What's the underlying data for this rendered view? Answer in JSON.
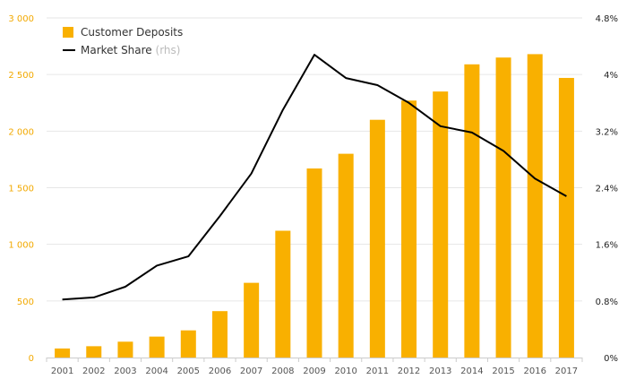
{
  "colors": {
    "bar": "#F9B000",
    "line": "#000000",
    "left_axis_text": "#F2A900",
    "right_axis_text": "#222222",
    "grid": "#E6E6E6"
  },
  "chart_data": {
    "type": "bar",
    "categories": [
      "2001",
      "2002",
      "2003",
      "2004",
      "2005",
      "2006",
      "2007",
      "2008",
      "2009",
      "2010",
      "2011",
      "2012",
      "2013",
      "2014",
      "2015",
      "2016",
      "2017"
    ],
    "series": [
      {
        "name": "Customer Deposits",
        "type": "bar",
        "axis": "left",
        "values": [
          80,
          100,
          140,
          185,
          240,
          410,
          660,
          1120,
          1670,
          1800,
          2100,
          2270,
          2350,
          2590,
          2650,
          2680,
          2470
        ]
      },
      {
        "name": "Market Share",
        "name_note": "(rhs)",
        "type": "line",
        "axis": "right",
        "values": [
          0.82,
          0.85,
          1.0,
          1.3,
          1.43,
          2.0,
          2.6,
          3.5,
          4.28,
          3.95,
          3.85,
          3.6,
          3.27,
          3.18,
          2.92,
          2.53,
          2.28
        ]
      }
    ],
    "y_left": {
      "lim": [
        0,
        3000
      ],
      "ticks": [
        0,
        500,
        1000,
        1500,
        2000,
        2500,
        3000
      ],
      "tick_labels": [
        "0",
        "500",
        "1 000",
        "1 500",
        "2 000",
        "2 500",
        "3 000"
      ]
    },
    "y_right": {
      "lim": [
        0,
        4.8
      ],
      "ticks": [
        0,
        0.8,
        1.6,
        2.4,
        3.2,
        4.0,
        4.8
      ],
      "tick_labels": [
        "0%",
        "0.8%",
        "1.6%",
        "2.4%",
        "3.2%",
        "4%",
        "4.8%"
      ]
    },
    "grid": true,
    "legend_position": "top-left"
  }
}
